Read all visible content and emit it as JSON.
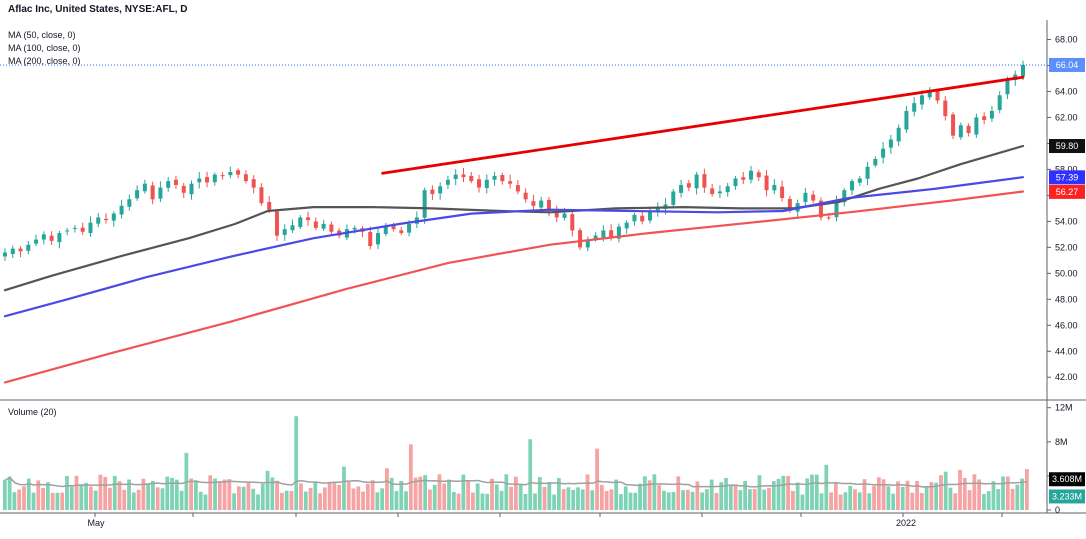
{
  "header": {
    "title": "Aflac Inc, United States, NYSE:AFL, D",
    "ma_labels": [
      "MA (50, close, 0)",
      "MA (100, close, 0)",
      "MA (200, close, 0)"
    ],
    "volume_label": "Volume (20)"
  },
  "colors": {
    "up": "#26a69a",
    "down": "#ef5350",
    "up_volume": "#7fd3b5",
    "down_volume": "#f5a3a3",
    "ma50": "#555555",
    "ma100": "#4a4ae6",
    "ma200": "#f05454",
    "trendline": "#e60000",
    "last_price": "#2962ff",
    "volume_ma": "#a0a0a0"
  },
  "chart_data": [
    {
      "type": "candlestick",
      "price_axis": {
        "ticks": [
          "68.00",
          "66.00",
          "64.00",
          "62.00",
          "60.00",
          "58.00",
          "56.00",
          "54.00",
          "52.00",
          "50.00",
          "48.00",
          "46.00",
          "44.00",
          "42.00"
        ],
        "range": [
          40.8,
          69.2
        ]
      },
      "time_axis": {
        "labels": [
          "May",
          "2022"
        ],
        "range": [
          "2021-04-12",
          "2022-02-16"
        ]
      },
      "last_price": "66.04",
      "ma_values": {
        "ma50": "59.80",
        "ma100": "57.39",
        "ma200": "56.27"
      },
      "series": [
        {
          "name": "MA (50, close, 0)",
          "points": [
            [
              "2021-04-12",
              48.7
            ],
            [
              "2021-04-26",
              49.8
            ],
            [
              "2021-05-17",
              51.3
            ],
            [
              "2021-06-07",
              52.7
            ],
            [
              "2021-06-21",
              53.8
            ],
            [
              "2021-07-01",
              54.8
            ],
            [
              "2021-07-15",
              55.1
            ],
            [
              "2021-08-02",
              55.1
            ],
            [
              "2021-08-20",
              55.0
            ],
            [
              "2021-09-10",
              54.8
            ],
            [
              "2021-09-25",
              54.7
            ],
            [
              "2021-10-15",
              55.0
            ],
            [
              "2021-11-05",
              55.1
            ],
            [
              "2021-11-22",
              55.0
            ],
            [
              "2021-12-08",
              55.0
            ],
            [
              "2021-12-22",
              55.5
            ],
            [
              "2022-01-03",
              56.5
            ],
            [
              "2022-01-15",
              57.3
            ],
            [
              "2022-01-28",
              58.4
            ],
            [
              "2022-02-16",
              59.8
            ]
          ]
        },
        {
          "name": "MA (100, close, 0)",
          "points": [
            [
              "2021-04-12",
              46.7
            ],
            [
              "2021-05-01",
              48.0
            ],
            [
              "2021-05-25",
              49.7
            ],
            [
              "2021-06-20",
              51.3
            ],
            [
              "2021-07-15",
              52.7
            ],
            [
              "2021-08-10",
              53.8
            ],
            [
              "2021-09-01",
              54.6
            ],
            [
              "2021-09-25",
              54.9
            ],
            [
              "2021-10-20",
              54.8
            ],
            [
              "2021-11-15",
              54.7
            ],
            [
              "2021-12-05",
              54.8
            ],
            [
              "2021-12-25",
              55.8
            ],
            [
              "2022-01-20",
              56.5
            ],
            [
              "2022-02-16",
              57.4
            ]
          ]
        },
        {
          "name": "MA (200, close, 0)",
          "points": [
            [
              "2021-04-12",
              41.6
            ],
            [
              "2021-05-15",
              43.9
            ],
            [
              "2021-06-20",
              46.3
            ],
            [
              "2021-07-25",
              48.8
            ],
            [
              "2021-08-25",
              50.8
            ],
            [
              "2021-09-25",
              52.2
            ],
            [
              "2021-10-25",
              53.1
            ],
            [
              "2021-11-25",
              53.9
            ],
            [
              "2021-12-25",
              54.7
            ],
            [
              "2022-01-25",
              55.6
            ],
            [
              "2022-02-16",
              56.3
            ]
          ]
        },
        {
          "name": "Trendline",
          "points": [
            [
              "2021-08-05",
              57.7
            ],
            [
              "2022-02-16",
              65.1
            ]
          ]
        }
      ],
      "candles_close": [
        51.6,
        51.9,
        51.7,
        52.2,
        52.6,
        53.0,
        52.5,
        53.1,
        53.3,
        53.5,
        53.2,
        53.9,
        54.3,
        54.1,
        54.6,
        55.2,
        55.7,
        56.4,
        56.9,
        55.7,
        56.6,
        57.1,
        56.8,
        56.2,
        56.9,
        57.3,
        57.0,
        57.6,
        57.5,
        57.8,
        57.6,
        57.1,
        56.6,
        55.4,
        54.9,
        52.9,
        53.4,
        53.7,
        54.3,
        54.1,
        53.5,
        53.8,
        53.2,
        52.9,
        53.4,
        53.5,
        53.2,
        52.1,
        53.1,
        53.6,
        53.4,
        53.1,
        53.8,
        54.3,
        56.4,
        56.1,
        56.7,
        57.2,
        57.6,
        57.4,
        57.1,
        56.6,
        57.2,
        57.5,
        57.1,
        56.9,
        56.3,
        55.7,
        55.2,
        55.6,
        54.8,
        54.3,
        54.6,
        53.3,
        52.0,
        52.6,
        52.9,
        53.3,
        52.7,
        53.6,
        53.9,
        54.5,
        54.0,
        54.8,
        55.0,
        55.3,
        56.3,
        56.8,
        56.6,
        57.6,
        56.6,
        56.1,
        56.3,
        56.7,
        57.3,
        57.2,
        57.9,
        57.4,
        56.4,
        56.8,
        55.8,
        54.8,
        55.4,
        56.2,
        55.6,
        54.3,
        54.3,
        55.6,
        56.4,
        57.1,
        57.3,
        58.2,
        58.8,
        59.6,
        60.3,
        61.2,
        62.5,
        63.1,
        63.7,
        64.1,
        63.3,
        62.1,
        60.6,
        61.4,
        60.8,
        62.0,
        61.8,
        62.5,
        63.7,
        64.9,
        65.3,
        66.04
      ],
      "volume_axis": {
        "ticks": [
          "12M",
          "8M",
          "4M",
          "0"
        ],
        "range": [
          0,
          12.2
        ]
      },
      "volume_last": "3.233M",
      "volume_ma_last": "3.608M",
      "volume_spikes": [
        [
          38,
          6.7
        ],
        [
          55,
          4.6
        ],
        [
          61,
          11.0
        ],
        [
          71,
          5.1
        ],
        [
          80,
          4.9
        ],
        [
          85,
          7.7
        ],
        [
          110,
          8.3
        ],
        [
          124,
          7.2
        ],
        [
          163,
          4.0
        ],
        [
          172,
          5.3
        ],
        [
          197,
          4.5
        ],
        [
          200,
          4.7
        ],
        [
          214,
          4.8
        ]
      ]
    }
  ]
}
